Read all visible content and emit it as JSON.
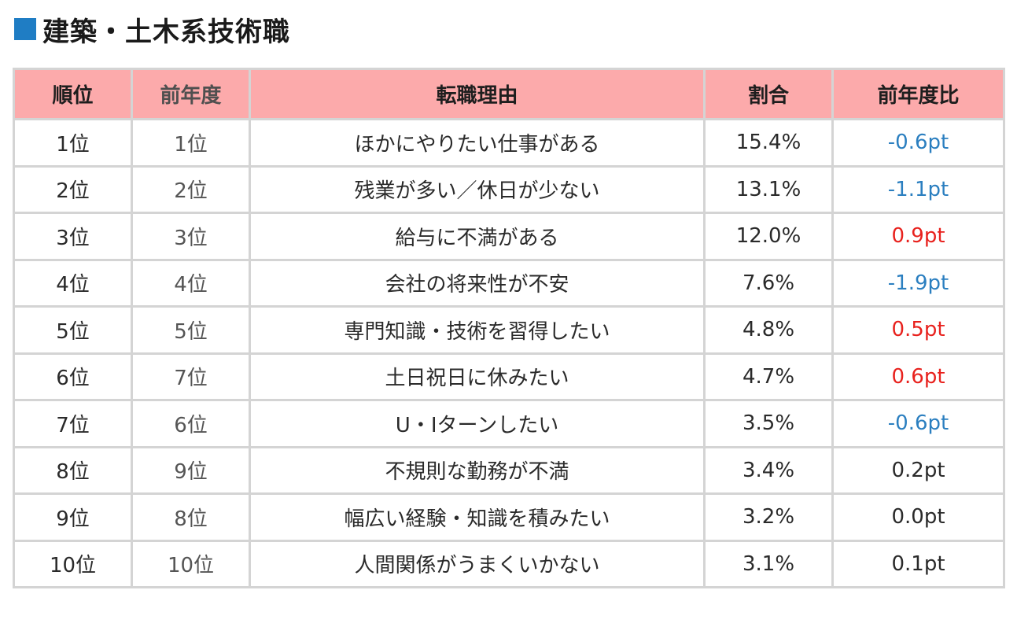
{
  "title": "建築・土木系技術職",
  "colors": {
    "title_square": "#1f7dc4",
    "header_bg": "#fcaaab",
    "negative": "#2b7fc0",
    "positive": "#e8211d",
    "neutral": "#2a2a2a"
  },
  "table": {
    "headers": {
      "rank": "順位",
      "prev_year": "前年度",
      "reason": "転職理由",
      "ratio": "割合",
      "yoy": "前年度比"
    },
    "rows": [
      {
        "rank": "1位",
        "prev": "1位",
        "reason": "ほかにやりたい仕事がある",
        "ratio": "15.4%",
        "diff": "-0.6pt",
        "tone": "neg"
      },
      {
        "rank": "2位",
        "prev": "2位",
        "reason": "残業が多い／休日が少ない",
        "ratio": "13.1%",
        "diff": "-1.1pt",
        "tone": "neg"
      },
      {
        "rank": "3位",
        "prev": "3位",
        "reason": "給与に不満がある",
        "ratio": "12.0%",
        "diff": "0.9pt",
        "tone": "pos"
      },
      {
        "rank": "4位",
        "prev": "4位",
        "reason": "会社の将来性が不安",
        "ratio": "7.6%",
        "diff": "-1.9pt",
        "tone": "neg"
      },
      {
        "rank": "5位",
        "prev": "5位",
        "reason": "専門知識・技術を習得したい",
        "ratio": "4.8%",
        "diff": "0.5pt",
        "tone": "pos"
      },
      {
        "rank": "6位",
        "prev": "7位",
        "reason": "土日祝日に休みたい",
        "ratio": "4.7%",
        "diff": "0.6pt",
        "tone": "pos"
      },
      {
        "rank": "7位",
        "prev": "6位",
        "reason": "U・Iターンしたい",
        "ratio": "3.5%",
        "diff": "-0.6pt",
        "tone": "neg"
      },
      {
        "rank": "8位",
        "prev": "9位",
        "reason": "不規則な勤務が不満",
        "ratio": "3.4%",
        "diff": "0.2pt",
        "tone": "neutral"
      },
      {
        "rank": "9位",
        "prev": "8位",
        "reason": "幅広い経験・知識を積みたい",
        "ratio": "3.2%",
        "diff": "0.0pt",
        "tone": "neutral"
      },
      {
        "rank": "10位",
        "prev": "10位",
        "reason": "人間関係がうまくいかない",
        "ratio": "3.1%",
        "diff": "0.1pt",
        "tone": "neutral"
      }
    ]
  }
}
